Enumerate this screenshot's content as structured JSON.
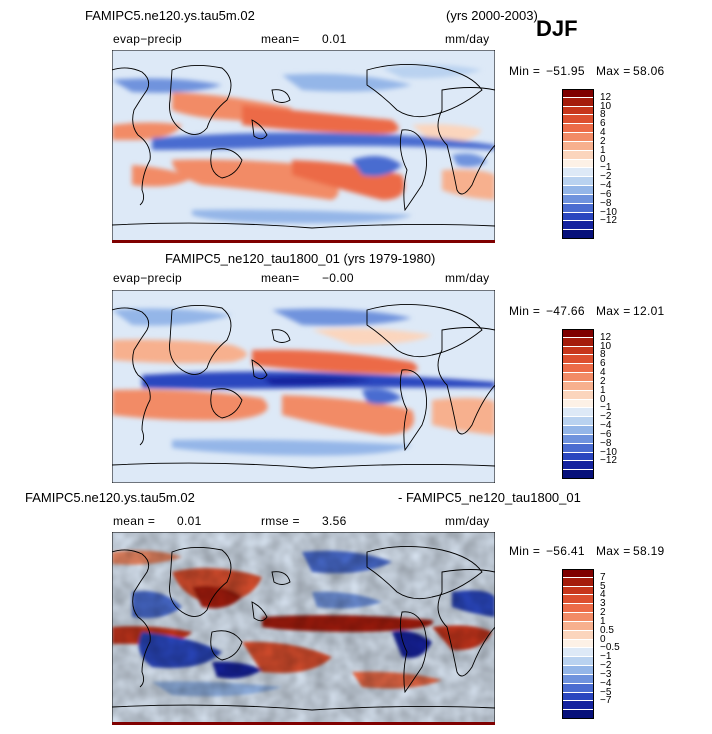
{
  "top": {
    "title": "FAMIPC5.ne120.ys.tau5m.02",
    "years": "(yrs 2000-2003)",
    "season": "DJF",
    "variable": "evap−precip",
    "mean_label": "mean=",
    "mean_value": "0.01",
    "units": "mm/day",
    "min_label": "Min =",
    "min_value": "−51.95",
    "max_label": "Max =",
    "max_value": "58.06"
  },
  "middle": {
    "title": "FAMIPC5_ne120_tau1800_01 (yrs 1979-1980)",
    "variable": "evap−precip",
    "mean_label": "mean=",
    "mean_value": "−0.00",
    "units": "mm/day",
    "min_label": "Min =",
    "min_value": "−47.66",
    "max_label": "Max =",
    "max_value": "12.01"
  },
  "bottom": {
    "title_left": "FAMIPC5.ne120.ys.tau5m.02",
    "title_right": "- FAMIPC5_ne120_tau1800_01",
    "mean_label": "mean =",
    "mean_value": "0.01",
    "rmse_label": "rmse =",
    "rmse_value": "3.56",
    "units": "mm/day",
    "min_label": "Min =",
    "min_value": "−56.41",
    "max_label": "Max =",
    "max_value": "58.19"
  },
  "colorbar_fields": {
    "labels": [
      "12",
      "10",
      "8",
      "6",
      "4",
      "2",
      "1",
      "0",
      "−1",
      "−2",
      "−4",
      "−6",
      "−8",
      "−10",
      "−12"
    ],
    "colors": [
      "#7f0000",
      "#a51c0c",
      "#c7361b",
      "#dc4f2e",
      "#ec6b47",
      "#f28b66",
      "#f7b08e",
      "#fbd5bd",
      "#fdf1e6",
      "#dde9f7",
      "#b9d2f0",
      "#94b6e8",
      "#6f93dd",
      "#4a6cd0",
      "#2a46bf",
      "#15239e",
      "#07107a"
    ]
  },
  "colorbar_diff": {
    "labels": [
      "7",
      "5",
      "4",
      "3",
      "2",
      "1",
      "0.5",
      "0",
      "−0.5",
      "−1",
      "−2",
      "−3",
      "−4",
      "−5",
      "−7"
    ],
    "colors": [
      "#7f0000",
      "#a51c0c",
      "#c7361b",
      "#dc4f2e",
      "#ec6b47",
      "#f28b66",
      "#f7b08e",
      "#fbd5bd",
      "#fdf1e6",
      "#dde9f7",
      "#b9d2f0",
      "#94b6e8",
      "#6f93dd",
      "#4a6cd0",
      "#2a46bf",
      "#15239e",
      "#07107a"
    ]
  }
}
